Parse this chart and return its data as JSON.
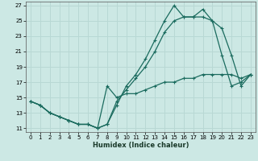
{
  "xlabel": "Humidex (Indice chaleur)",
  "bg_color": "#cce8e4",
  "grid_color": "#b8d8d4",
  "line_color": "#1a6b5e",
  "xlim": [
    -0.5,
    23.5
  ],
  "ylim": [
    10.5,
    27.5
  ],
  "yticks": [
    11,
    13,
    15,
    17,
    19,
    21,
    23,
    25,
    27
  ],
  "xticks": [
    0,
    1,
    2,
    3,
    4,
    5,
    6,
    7,
    8,
    9,
    10,
    11,
    12,
    13,
    14,
    15,
    16,
    17,
    18,
    19,
    20,
    21,
    22,
    23
  ],
  "line1_x": [
    0,
    1,
    2,
    3,
    4,
    5,
    6,
    7,
    8,
    9,
    10,
    11,
    12,
    13,
    14,
    15,
    16,
    17,
    18,
    19,
    20,
    21,
    22,
    23
  ],
  "line1_y": [
    14.5,
    14.0,
    13.0,
    12.5,
    12.0,
    11.5,
    11.5,
    11.0,
    11.5,
    14.0,
    16.5,
    18.0,
    20.0,
    22.5,
    25.0,
    27.0,
    25.5,
    25.5,
    25.5,
    25.0,
    20.5,
    16.5,
    17.0,
    18.0
  ],
  "line2_x": [
    0,
    1,
    2,
    3,
    4,
    5,
    6,
    7,
    8,
    9,
    10,
    11,
    12,
    13,
    14,
    15,
    16,
    17,
    18,
    19,
    20,
    21,
    22,
    23
  ],
  "line2_y": [
    14.5,
    14.0,
    13.0,
    12.5,
    12.0,
    11.5,
    11.5,
    11.0,
    11.5,
    14.5,
    16.0,
    17.5,
    19.0,
    21.0,
    23.5,
    25.0,
    25.5,
    25.5,
    26.5,
    25.0,
    24.0,
    20.5,
    16.5,
    18.0
  ],
  "line3_x": [
    0,
    1,
    2,
    3,
    4,
    5,
    6,
    7,
    8,
    9,
    10,
    11,
    12,
    13,
    14,
    15,
    16,
    17,
    18,
    19,
    20,
    21,
    22,
    23
  ],
  "line3_y": [
    14.5,
    14.0,
    13.0,
    12.5,
    12.0,
    11.5,
    11.5,
    11.0,
    16.5,
    15.0,
    15.5,
    15.5,
    16.0,
    16.5,
    17.0,
    17.0,
    17.5,
    17.5,
    18.0,
    18.0,
    18.0,
    18.0,
    17.5,
    18.0
  ]
}
